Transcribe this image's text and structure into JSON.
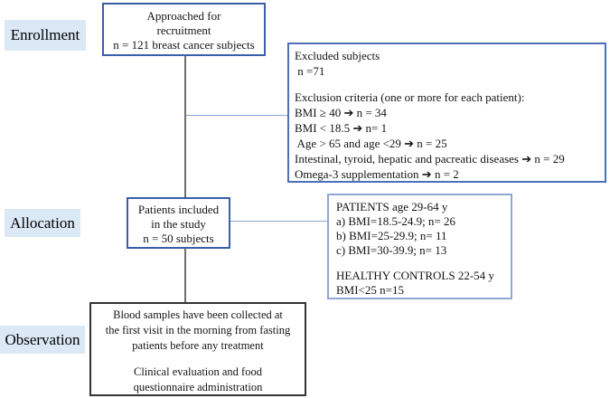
{
  "colors": {
    "stage_label_background": "#dbe8f5",
    "primary_box_border": "#3b5ea9",
    "excluded_box_border": "#4b70b8",
    "groups_box_border": "#8fa9d4",
    "observation_box_border": "#333333",
    "trunk_connector": "#6e6e6e",
    "branch_connector": "#8aa5cf",
    "text": "#141414"
  },
  "stages": {
    "enrollment": {
      "label": "Enrollment"
    },
    "allocation": {
      "label": "Allocation"
    },
    "observation": {
      "label": "Observation"
    }
  },
  "boxes": {
    "approached": {
      "lines": [
        "Approached for",
        "recruitment",
        "n = 121 breast cancer subjects"
      ]
    },
    "excluded": {
      "lines": [
        "Excluded subjects",
        " n =71",
        "",
        "Exclusion criteria (one or more for each patient):",
        "BMI ≥ 40 ➔ n = 34",
        "BMI < 18.5 ➔ n= 1",
        " Age > 65 and age <29 ➔ n = 25",
        "Intestinal, tyroid, hepatic and pacreatic diseases ➔ n = 29",
        "Omega-3 supplementation ➔ n = 2"
      ]
    },
    "included": {
      "lines": [
        "Patients included",
        "in the study",
        "n = 50 subjects"
      ]
    },
    "groups": {
      "lines": [
        "PATIENTS age 29-64 y",
        "a) BMI=18.5-24.9; n= 26",
        "b) BMI=25-29.9; n= 11",
        "c) BMI=30-39.9; n= 13",
        "",
        "HEALTHY CONTROLS 22-54 y",
        "BMI<25 n=15"
      ]
    },
    "observation": {
      "lines": [
        "Blood samples have been collected at",
        "the first visit in the morning from fasting",
        "patients before any treatment",
        "",
        "Clinical evaluation and food",
        "questionnaire administration"
      ]
    }
  }
}
